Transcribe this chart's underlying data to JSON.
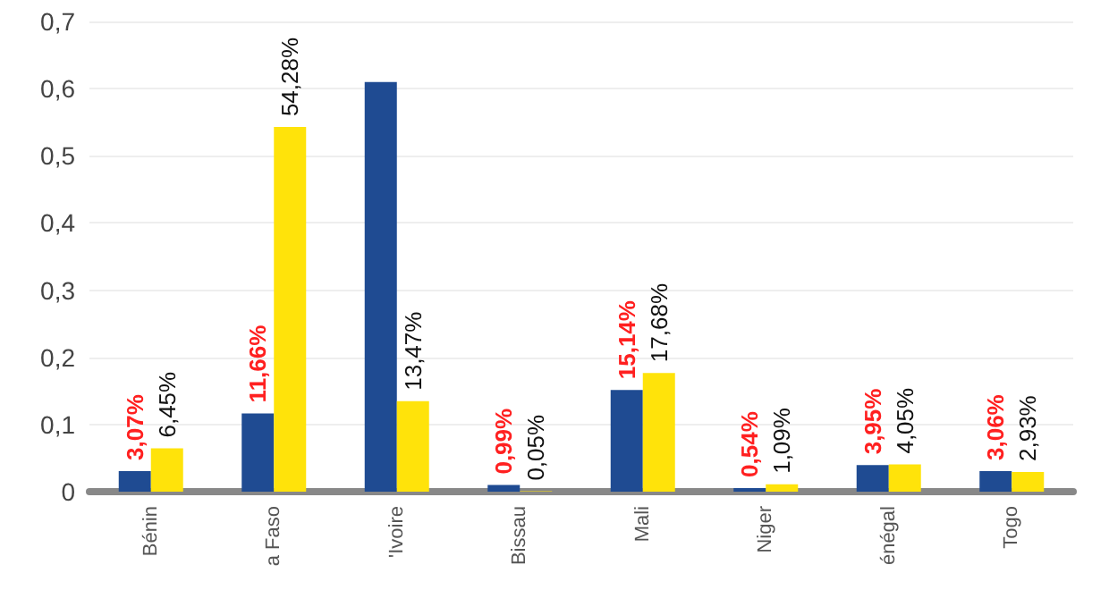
{
  "chart_data": {
    "type": "bar",
    "categories": [
      "Bénin",
      "a Faso",
      "'Ivoire",
      "Bissau",
      "Mali",
      "Niger",
      "énégal",
      "Togo"
    ],
    "series": [
      {
        "color": "#1f4b92",
        "values": [
          0.0307,
          0.1166,
          0.61,
          0.0099,
          0.1514,
          0.0054,
          0.0395,
          0.0306
        ],
        "value_labels": [
          "3,07%",
          "11,66%",
          null,
          "0,99%",
          "15,14%",
          "0,54%",
          "3,95%",
          "3,06%"
        ]
      },
      {
        "color": "#ffe30a",
        "values": [
          0.0645,
          0.5428,
          0.1347,
          0.0005,
          0.1768,
          0.0109,
          0.0405,
          0.0293
        ],
        "value_labels": [
          "6,45%",
          "54,28%",
          "13,47%",
          "0,05%",
          "17,68%",
          "1,09%",
          "4,05%",
          "2,93%"
        ]
      }
    ],
    "ylim": [
      0,
      0.7
    ],
    "yticks": [
      0,
      {
        "value": 0.1,
        "label": "0,1"
      },
      {
        "value": 0.2,
        "label": "0,2"
      },
      {
        "value": 0.3,
        "label": "0,3"
      },
      {
        "value": 0.4,
        "label": "0,4"
      },
      {
        "value": 0.5,
        "label": "0,5"
      },
      {
        "value": 0.6,
        "label": "0,6"
      },
      {
        "value": 0.7,
        "label": "0,7"
      }
    ],
    "grid": "y"
  }
}
